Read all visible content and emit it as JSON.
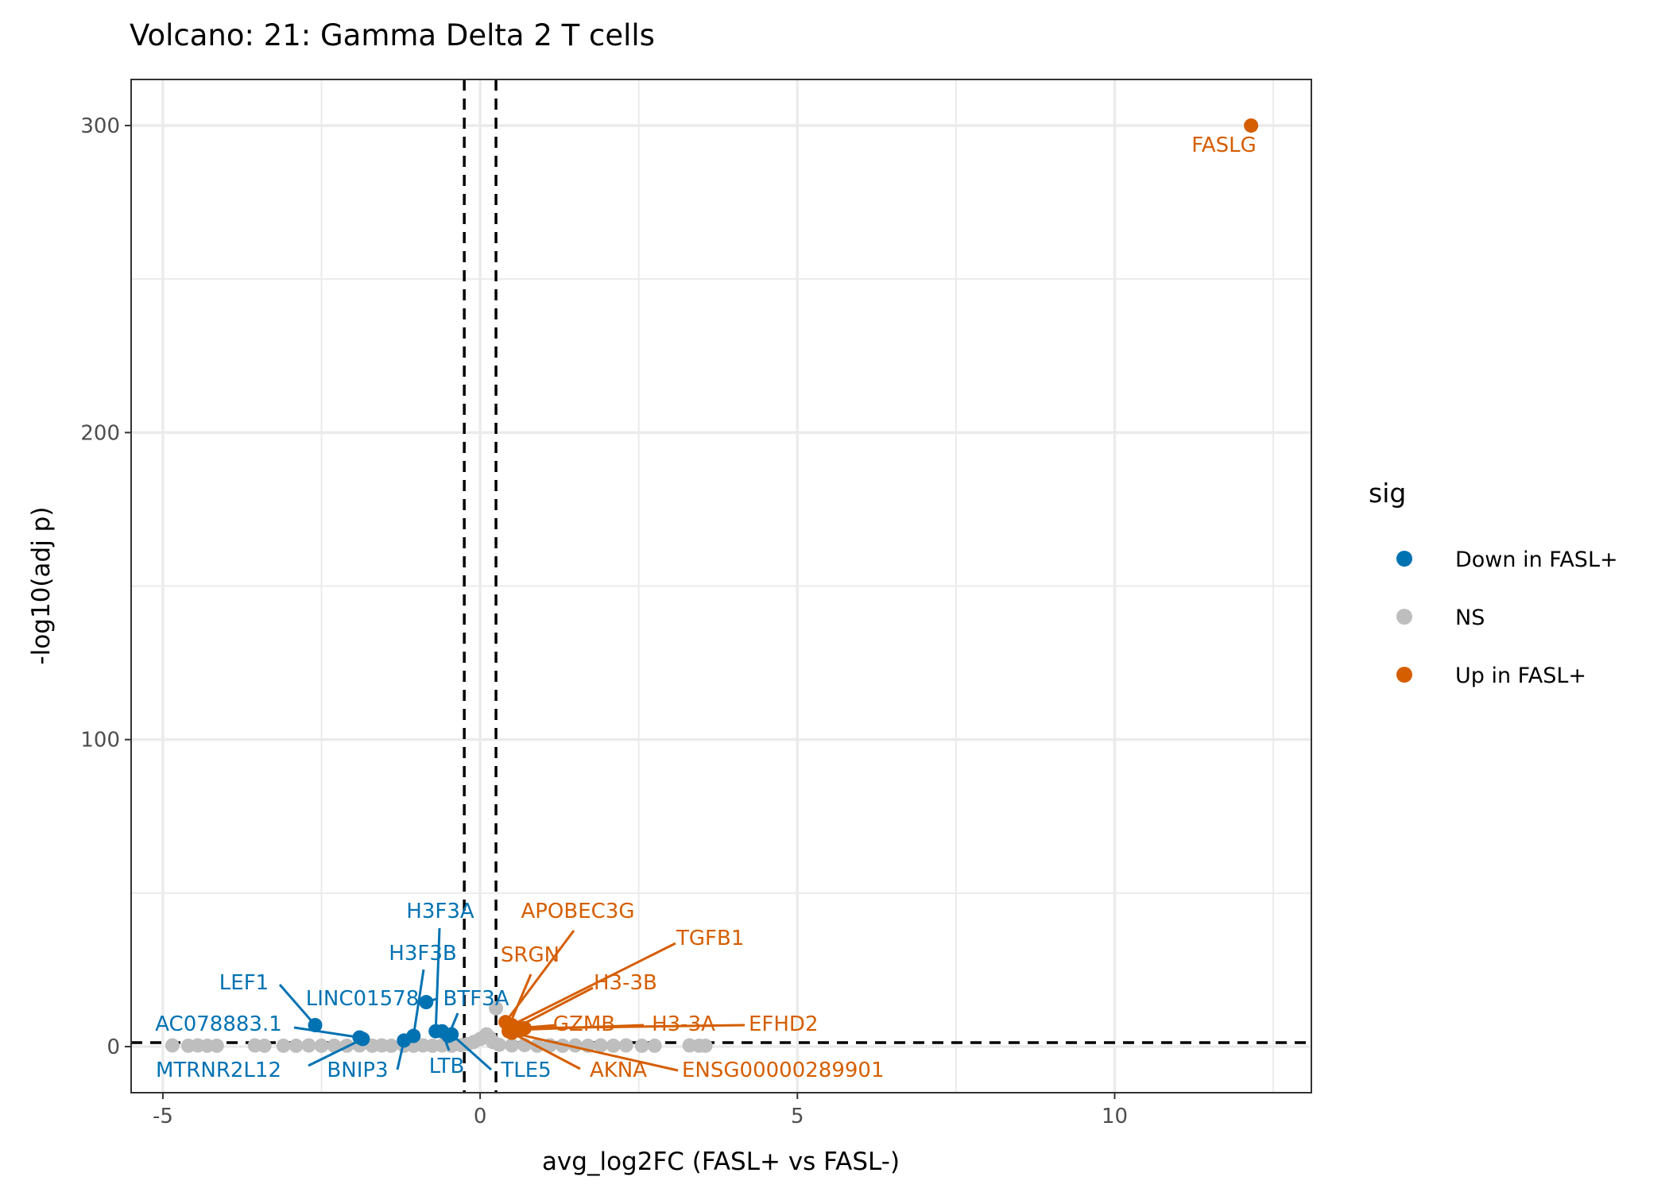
{
  "chart_data": {
    "type": "scatter",
    "title": "Volcano: 21: Gamma Delta 2 T cells",
    "xlabel": "avg_log2FC (FASL+ vs FASL-)",
    "ylabel": "-log10(adj p)",
    "xlim": [
      -5.5,
      13.1
    ],
    "ylim": [
      -15,
      315
    ],
    "x_ticks": [
      -5,
      0,
      5,
      10
    ],
    "x_tick_labels": [
      "-5",
      "0",
      "5",
      "10"
    ],
    "y_ticks": [
      0,
      100,
      200,
      300
    ],
    "y_tick_labels": [
      "0",
      "100",
      "200",
      "300"
    ],
    "x_minor_ticks": [
      -2.5,
      2.5,
      7.5,
      12.5
    ],
    "y_minor_ticks": [
      50,
      150,
      250
    ],
    "grid": true,
    "vlines": [
      -0.25,
      0.25
    ],
    "hline": 1.3,
    "legend": {
      "title": "sig",
      "position": "right",
      "entries": [
        {
          "label": "Down in FASL+",
          "color": "#0072B2"
        },
        {
          "label": "NS",
          "color": "#BEBEBE"
        },
        {
          "label": "Up in FASL+",
          "color": "#D55E00"
        }
      ]
    },
    "series": [
      {
        "name": "NS",
        "color": "#BEBEBE",
        "points": [
          [
            -4.85,
            0.4
          ],
          [
            -4.6,
            0.3
          ],
          [
            -4.45,
            0.4
          ],
          [
            -4.3,
            0.3
          ],
          [
            -4.15,
            0.3
          ],
          [
            -3.55,
            0.4
          ],
          [
            -3.4,
            0.3
          ],
          [
            -3.1,
            0.3
          ],
          [
            -2.9,
            0.3
          ],
          [
            -2.7,
            0.4
          ],
          [
            -2.5,
            0.3
          ],
          [
            -2.3,
            0.3
          ],
          [
            -2.1,
            0.3
          ],
          [
            -1.9,
            0.4
          ],
          [
            -1.7,
            0.3
          ],
          [
            -1.55,
            0.4
          ],
          [
            -1.4,
            0.3
          ],
          [
            -1.2,
            0.3
          ],
          [
            -1.05,
            0.3
          ],
          [
            -0.9,
            0.4
          ],
          [
            -0.75,
            0.3
          ],
          [
            -0.6,
            0.4
          ],
          [
            -0.45,
            0.3
          ],
          [
            -0.3,
            0.5
          ],
          [
            -0.2,
            0.8
          ],
          [
            -0.1,
            1.5
          ],
          [
            0.0,
            2.5
          ],
          [
            0.1,
            4.0
          ],
          [
            0.15,
            3.0
          ],
          [
            0.2,
            1.5
          ],
          [
            0.25,
            12.5
          ],
          [
            0.3,
            0.6
          ],
          [
            0.5,
            0.4
          ],
          [
            0.7,
            0.5
          ],
          [
            0.9,
            0.3
          ],
          [
            1.1,
            0.4
          ],
          [
            1.3,
            0.3
          ],
          [
            1.5,
            0.4
          ],
          [
            1.7,
            0.3
          ],
          [
            1.9,
            0.4
          ],
          [
            2.1,
            0.3
          ],
          [
            2.3,
            0.4
          ],
          [
            2.55,
            0.3
          ],
          [
            2.75,
            0.3
          ],
          [
            3.3,
            0.4
          ],
          [
            3.45,
            0.3
          ],
          [
            3.55,
            0.3
          ]
        ]
      },
      {
        "name": "Down in FASL+",
        "color": "#0072B2",
        "points": [
          {
            "x": -2.6,
            "y": 7.0,
            "label": "LEF1"
          },
          {
            "x": -1.9,
            "y": 3.0,
            "label": "AC078883.1"
          },
          {
            "x": -1.85,
            "y": 2.5,
            "label": "MTRNR2L12"
          },
          {
            "x": -1.2,
            "y": 2.0,
            "label": "BNIP3"
          },
          {
            "x": -1.05,
            "y": 3.5,
            "label": "H3F3B"
          },
          {
            "x": -0.85,
            "y": 14.5,
            "label": "LINC01578"
          },
          {
            "x": -0.7,
            "y": 5.0,
            "label": "H3F3A"
          },
          {
            "x": -0.6,
            "y": 5.0,
            "label": "LTB"
          },
          {
            "x": -0.45,
            "y": 4.0,
            "label": "TLE5"
          },
          {
            "x": -0.5,
            "y": 3.5,
            "label": "BTF3A"
          }
        ]
      },
      {
        "name": "Up in FASL+",
        "color": "#D55E00",
        "points": [
          {
            "x": 12.15,
            "y": 300.0,
            "label": "FASLG"
          },
          {
            "x": 0.4,
            "y": 8.0,
            "label": "APOBEC3G"
          },
          {
            "x": 0.45,
            "y": 6.5,
            "label": "SRGN"
          },
          {
            "x": 0.5,
            "y": 7.0,
            "label": "TGFB1"
          },
          {
            "x": 0.55,
            "y": 6.0,
            "label": "H3-3B"
          },
          {
            "x": 0.6,
            "y": 6.0,
            "label": "GZMB"
          },
          {
            "x": 0.65,
            "y": 5.5,
            "label": "H3-3A"
          },
          {
            "x": 0.7,
            "y": 6.0,
            "label": "EFHD2"
          },
          {
            "x": 0.45,
            "y": 5.0,
            "label": "AKNA"
          },
          {
            "x": 0.5,
            "y": 4.5,
            "label": "ENSG00000289901"
          }
        ]
      }
    ],
    "annotations": [
      {
        "text": "FASLG",
        "color": "#D55E00"
      },
      {
        "text": "APOBEC3G",
        "color": "#D55E00"
      },
      {
        "text": "TGFB1",
        "color": "#D55E00"
      },
      {
        "text": "SRGN",
        "color": "#D55E00"
      },
      {
        "text": "H3-3B",
        "color": "#D55E00"
      },
      {
        "text": "GZMB",
        "color": "#D55E00"
      },
      {
        "text": "H3-3A",
        "color": "#D55E00"
      },
      {
        "text": "EFHD2",
        "color": "#D55E00"
      },
      {
        "text": "AKNA",
        "color": "#D55E00"
      },
      {
        "text": "ENSG00000289901",
        "color": "#D55E00"
      },
      {
        "text": "H3F3A",
        "color": "#0072B2"
      },
      {
        "text": "H3F3B",
        "color": "#0072B2"
      },
      {
        "text": "LEF1",
        "color": "#0072B2"
      },
      {
        "text": "LINC01578",
        "color": "#0072B2"
      },
      {
        "text": "BTF3A",
        "color": "#0072B2"
      },
      {
        "text": "AC078883.1",
        "color": "#0072B2"
      },
      {
        "text": "MTRNR2L12",
        "color": "#0072B2"
      },
      {
        "text": "BNIP3",
        "color": "#0072B2"
      },
      {
        "text": "LTB",
        "color": "#0072B2"
      },
      {
        "text": "TLE5",
        "color": "#0072B2"
      }
    ]
  }
}
